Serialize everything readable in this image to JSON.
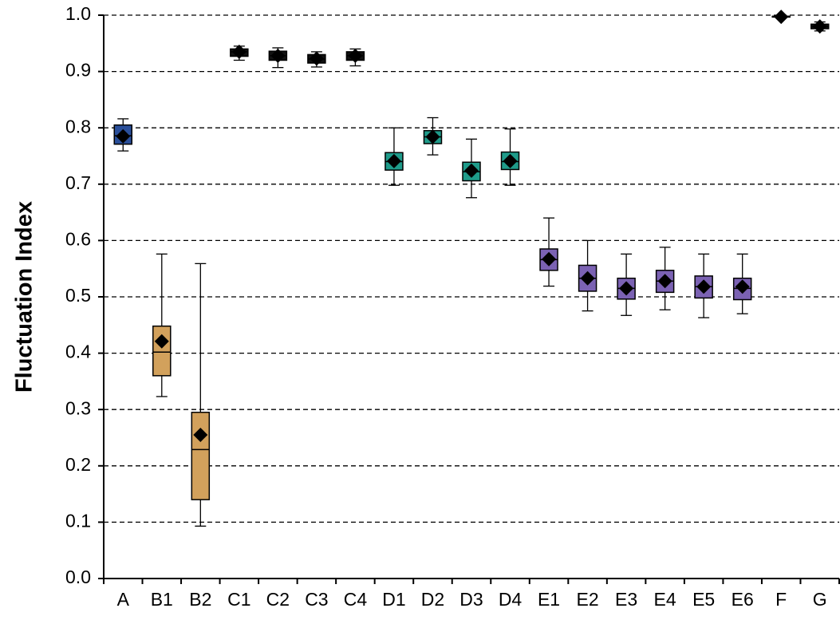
{
  "chart_data": {
    "type": "box",
    "y_label": "Fluctuation Index",
    "categories": [
      "A",
      "B1",
      "B2",
      "C1",
      "C2",
      "C3",
      "C4",
      "D1",
      "D2",
      "D3",
      "D4",
      "E1",
      "E2",
      "E3",
      "E4",
      "E5",
      "E6",
      "F",
      "G"
    ],
    "whisker_low": [
      0.759,
      0.323,
      0.093,
      0.92,
      0.907,
      0.908,
      0.91,
      0.698,
      0.752,
      0.676,
      0.698,
      0.519,
      0.475,
      0.467,
      0.477,
      0.463,
      0.47,
      0.996,
      0.972
    ],
    "q1": [
      0.771,
      0.36,
      0.14,
      0.927,
      0.92,
      0.915,
      0.92,
      0.725,
      0.772,
      0.706,
      0.726,
      0.547,
      0.51,
      0.496,
      0.508,
      0.498,
      0.495,
      0.997,
      0.976
    ],
    "median": [
      0.786,
      0.402,
      0.229,
      0.935,
      0.928,
      0.922,
      0.928,
      0.74,
      0.784,
      0.722,
      0.74,
      0.566,
      0.533,
      0.515,
      0.528,
      0.518,
      0.515,
      0.998,
      0.98
    ],
    "q3": [
      0.805,
      0.448,
      0.295,
      0.94,
      0.936,
      0.93,
      0.935,
      0.756,
      0.795,
      0.739,
      0.757,
      0.585,
      0.556,
      0.533,
      0.547,
      0.537,
      0.533,
      0.998,
      0.984
    ],
    "whisker_high": [
      0.816,
      0.576,
      0.559,
      0.945,
      0.942,
      0.935,
      0.94,
      0.8,
      0.818,
      0.78,
      0.798,
      0.64,
      0.6,
      0.576,
      0.588,
      0.576,
      0.576,
      0.999,
      0.988
    ],
    "mean": [
      0.785,
      0.421,
      0.255,
      0.935,
      0.928,
      0.923,
      0.928,
      0.741,
      0.784,
      0.724,
      0.741,
      0.567,
      0.533,
      0.515,
      0.528,
      0.518,
      0.518,
      0.997,
      0.98
    ],
    "colors": [
      "#2a4f9a",
      "#d2a15c",
      "#d2a15c",
      "#111111",
      "#111111",
      "#111111",
      "#111111",
      "#1f9b8a",
      "#1f9b8a",
      "#1f9b8a",
      "#1f9b8a",
      "#7b62b3",
      "#7b62b3",
      "#7b62b3",
      "#7b62b3",
      "#7b62b3",
      "#7b62b3",
      "#111111",
      "#111111"
    ],
    "ylim": [
      0,
      1
    ],
    "yticks": [
      {
        "value": 0,
        "label": "0.0"
      },
      0.1,
      0.2,
      0.3,
      0.4,
      0.5,
      0.6,
      0.7,
      0.8,
      0.9,
      {
        "value": 1,
        "label": "1.0"
      }
    ],
    "grid": true
  }
}
